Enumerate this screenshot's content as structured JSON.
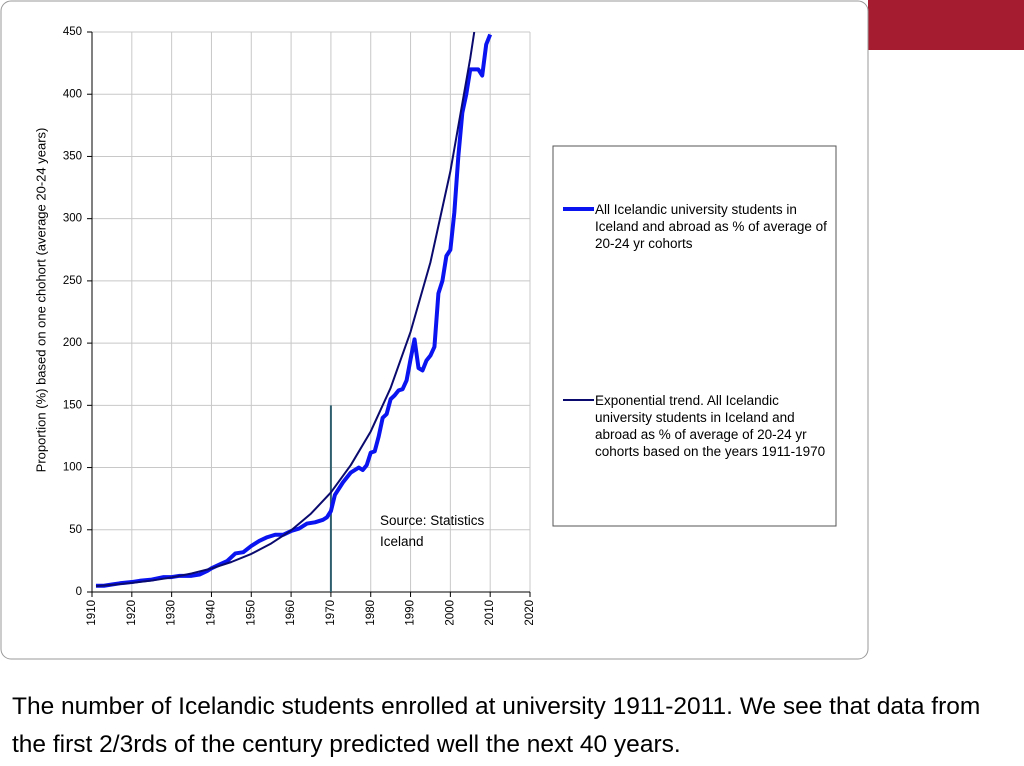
{
  "chart_data": {
    "type": "line",
    "ylabel": "Proportion (%) based on one chohort (average 20-24 years)",
    "xlim": [
      1910,
      2020
    ],
    "xticks": [
      1910,
      1920,
      1930,
      1940,
      1950,
      1960,
      1970,
      1980,
      1990,
      2000,
      2010,
      2020
    ],
    "ylim": [
      0,
      450
    ],
    "yticks": [
      0,
      50,
      100,
      150,
      200,
      250,
      300,
      350,
      400,
      450
    ],
    "grid": true,
    "legend": "right",
    "annotation": "Source: Statistics Iceland",
    "reference_line": {
      "x": 1970,
      "y": 150,
      "color": "#2f5f6f"
    },
    "series": [
      {
        "name": "All Icelandic university students in Iceland and abroad as % of average of 20-24 yr cohorts",
        "color": "#0a14f0",
        "width": 4,
        "x": [
          1911,
          1913,
          1915,
          1917,
          1920,
          1922,
          1925,
          1928,
          1930,
          1932,
          1935,
          1937,
          1939,
          1940,
          1942,
          1944,
          1946,
          1948,
          1950,
          1952,
          1954,
          1956,
          1958,
          1960,
          1962,
          1964,
          1966,
          1968,
          1969,
          1970,
          1971,
          1973,
          1975,
          1977,
          1978,
          1979,
          1980,
          1981,
          1982,
          1983,
          1984,
          1985,
          1986,
          1987,
          1988,
          1989,
          1990,
          1991,
          1992,
          1993,
          1994,
          1995,
          1996,
          1997,
          1998,
          1999,
          2000,
          2001,
          2002,
          2003,
          2004,
          2005,
          2006,
          2007,
          2008,
          2009,
          2010
        ],
        "values": [
          5,
          5,
          6,
          7,
          8,
          9,
          10,
          12,
          12,
          13,
          13,
          14,
          17,
          19,
          22,
          25,
          31,
          32,
          37,
          41,
          44,
          46,
          46,
          49,
          51,
          55,
          56,
          58,
          60,
          65,
          78,
          88,
          96,
          100,
          98,
          102,
          112,
          113,
          125,
          140,
          143,
          155,
          158,
          162,
          163,
          170,
          187,
          203,
          180,
          178,
          186,
          190,
          197,
          240,
          250,
          270,
          275,
          305,
          350,
          385,
          400,
          420,
          420,
          420,
          415,
          440,
          448
        ]
      },
      {
        "name": "Exponential trend. All Icelandic university students in Iceland and abroad as % of average of 20-24 yr cohorts based on the years 1911-1970",
        "color": "#0a0a6e",
        "width": 2,
        "x": [
          1911,
          1915,
          1920,
          1925,
          1930,
          1935,
          1940,
          1945,
          1950,
          1955,
          1960,
          1965,
          1970,
          1975,
          1980,
          1985,
          1990,
          1995,
          2000,
          2005,
          2006
        ],
        "values": [
          4.7,
          5.7,
          7.3,
          9.2,
          11.7,
          14.9,
          18.9,
          24.1,
          30.6,
          39,
          49.5,
          63,
          80,
          102,
          129,
          164,
          209,
          265,
          338,
          429,
          450
        ]
      }
    ]
  },
  "caption": "The number of Icelandic students enrolled at university 1911-2011. We see that data from the first 2/3rds of the century predicted well the next 40 years."
}
